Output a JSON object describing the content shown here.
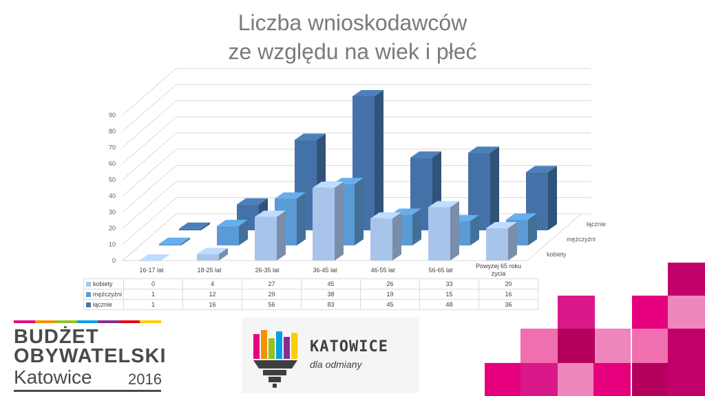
{
  "title": {
    "line1": "Liczba wnioskodawców",
    "line2": "ze względu na wiek i płeć"
  },
  "chart_data": {
    "type": "bar",
    "subtype": "3d-clustered-depth",
    "title": "Liczba wnioskodawców ze względu na wiek i płeć",
    "categories": [
      "16-17 lat",
      "18-25 lat",
      "26-35 lat",
      "36-45 lat",
      "46-55 lat",
      "56-65 lat",
      "Powyżej 65 roku\nżycia"
    ],
    "series": [
      {
        "name": "kobiety",
        "values": [
          0,
          4,
          27,
          45,
          26,
          33,
          20
        ],
        "color": "#a9c4eb"
      },
      {
        "name": "mężczyźni",
        "values": [
          1,
          12,
          29,
          38,
          19,
          15,
          16
        ],
        "color": "#5b9bd5"
      },
      {
        "name": "łącznie",
        "values": [
          1,
          16,
          56,
          83,
          45,
          48,
          36
        ],
        "color": "#4472a8"
      }
    ],
    "ylim": [
      0,
      90
    ],
    "yticks": [
      0,
      10,
      20,
      30,
      40,
      50,
      60,
      70,
      80,
      90
    ],
    "grid": true,
    "data_table": true
  },
  "logos": {
    "budget": {
      "line1": "BUDŻET",
      "line2": "OBYWATELSKI",
      "city": "Katowice",
      "year": "2016"
    },
    "katowice": {
      "name": "KATOWICE",
      "tagline": "dla odmiany"
    }
  },
  "colors": {
    "stripe": [
      "#e5007e",
      "#f39200",
      "#95c11f",
      "#00a0e3",
      "#8b2c8c",
      "#e30613",
      "#ffcc00"
    ],
    "magenta": [
      "#e6007e",
      "#c2006a",
      "#f06fb0",
      "#d9198a",
      "#b5005e",
      "#ee86bd"
    ]
  }
}
